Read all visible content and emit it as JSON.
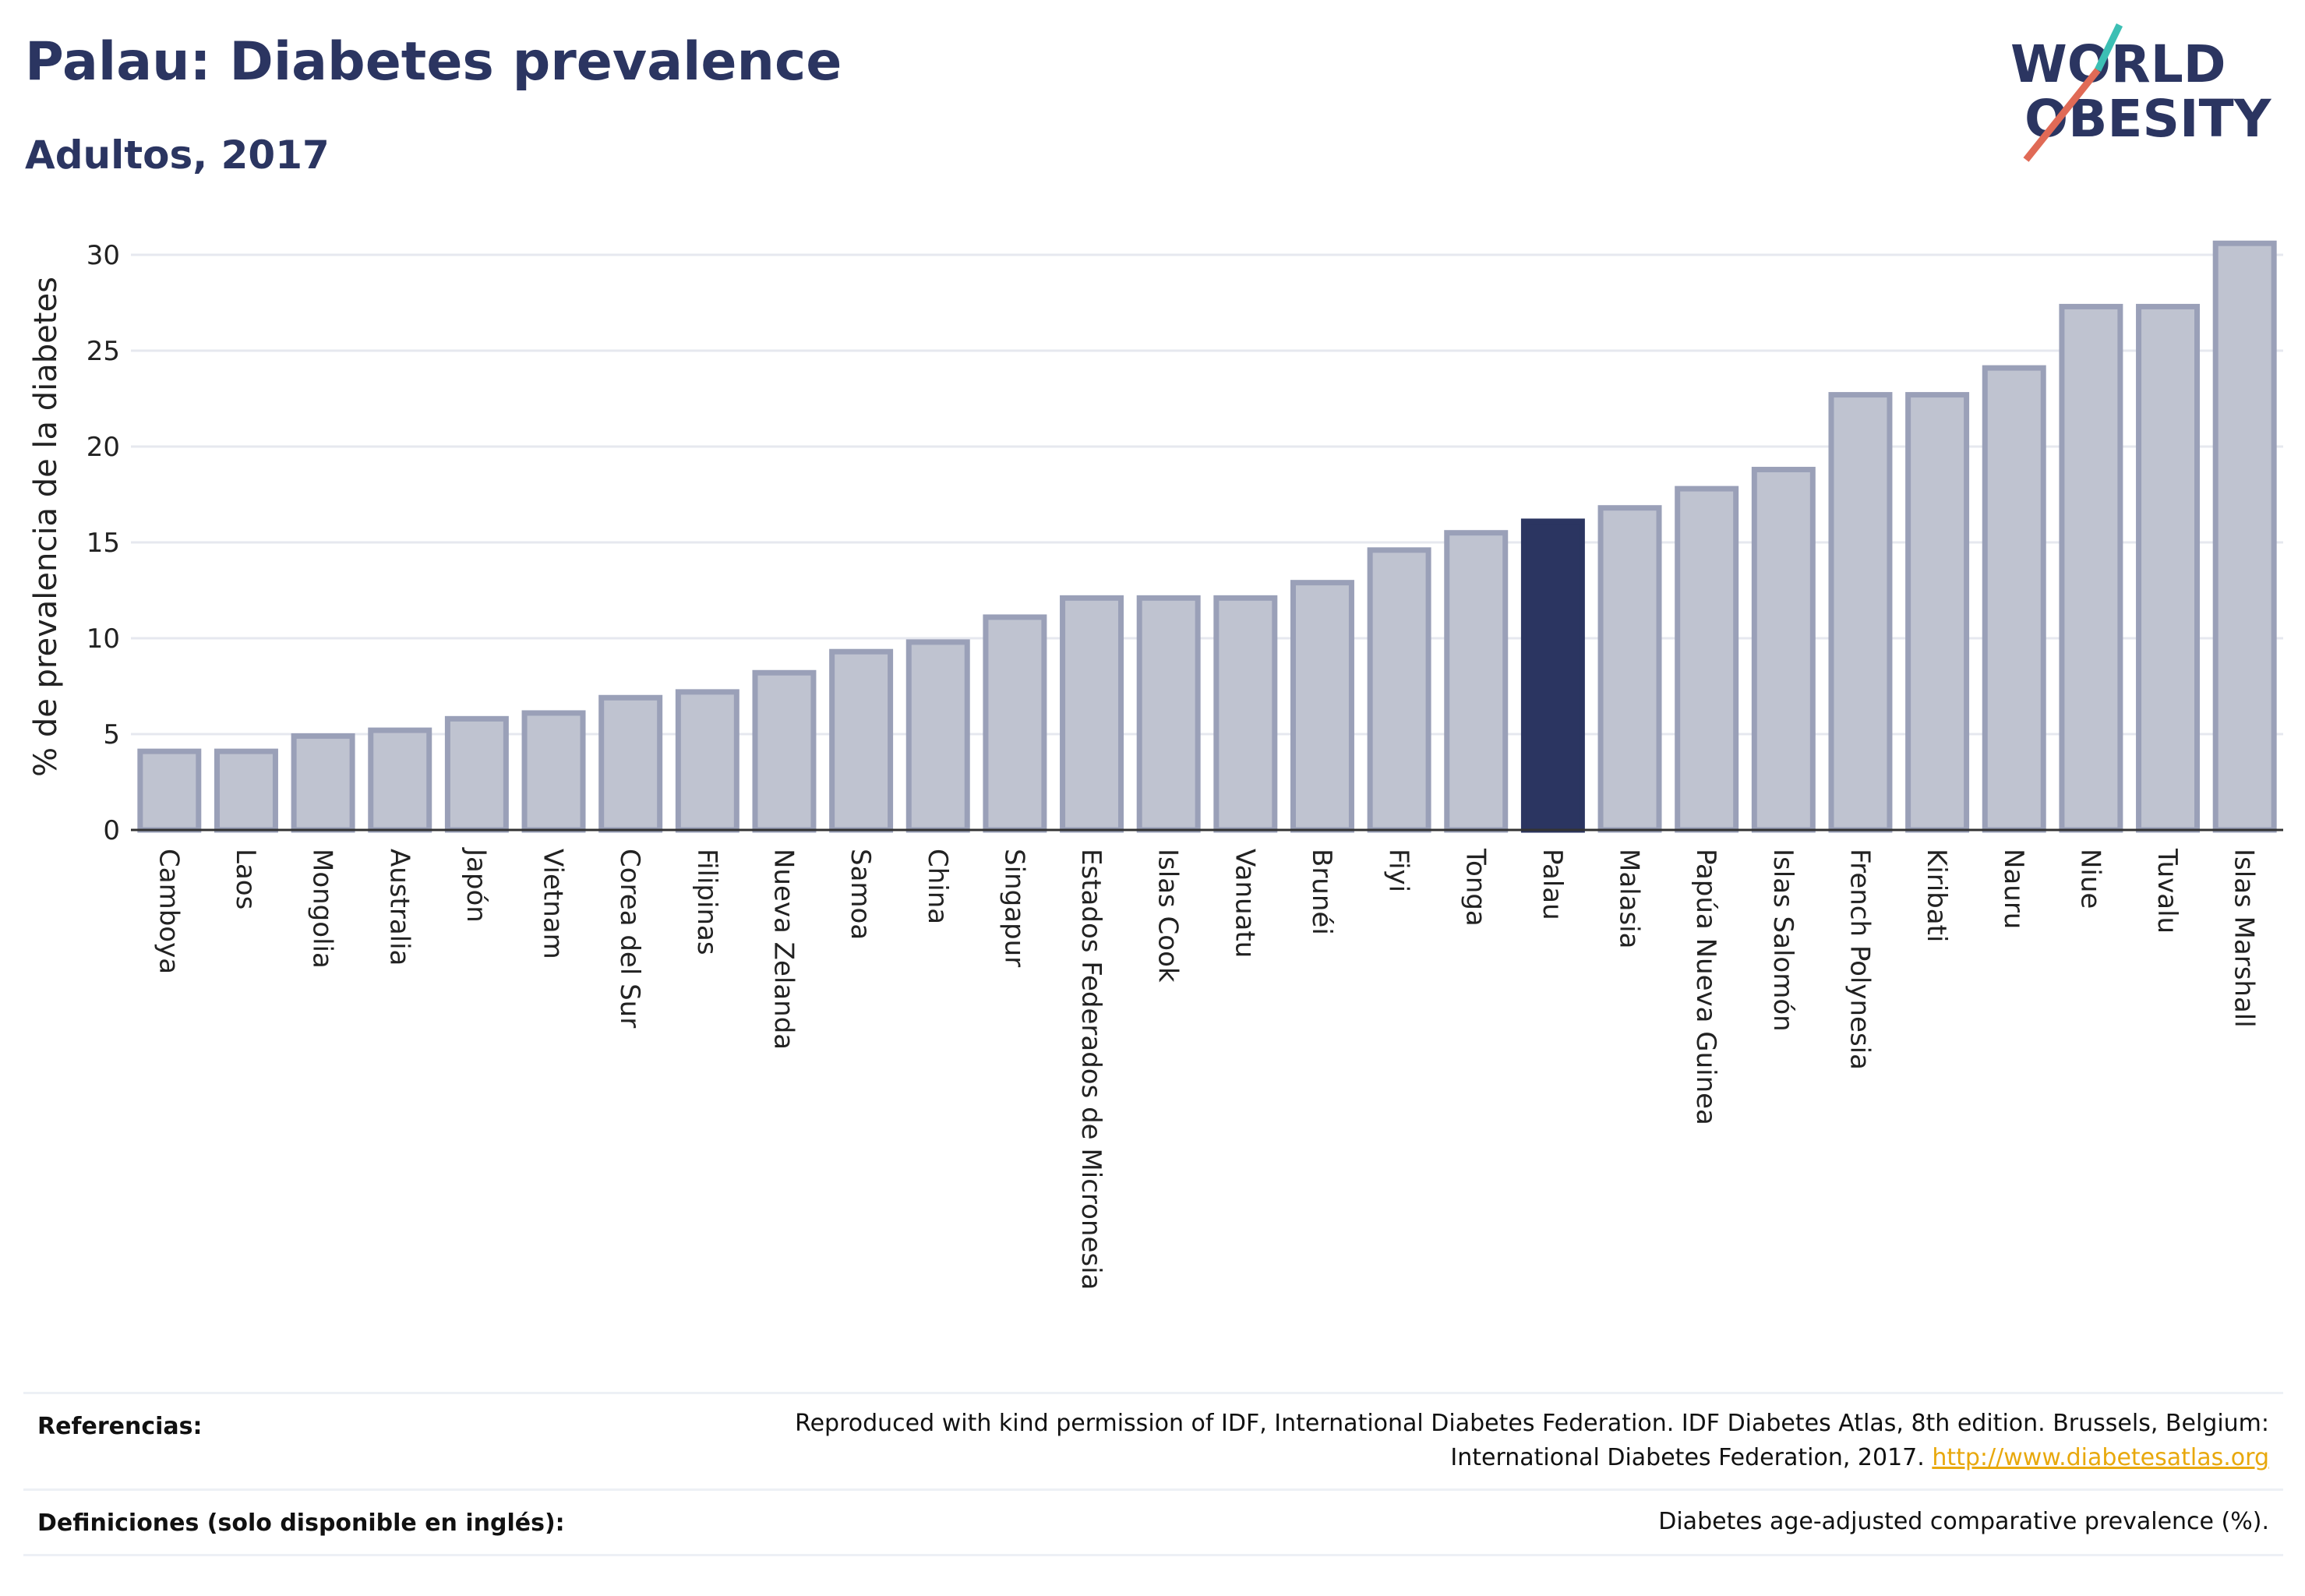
{
  "header": {
    "title": "Palau: Diabetes prevalence",
    "subtitle": "Adultos, 2017"
  },
  "logo": {
    "line1": "WORLD",
    "line2": "OBESITY",
    "text_color": "#2b3561",
    "slash_colors": [
      "#e06a56",
      "#3cbfb4"
    ]
  },
  "chart_data": {
    "type": "bar",
    "title": "Palau: Diabetes prevalence",
    "subtitle": "Adultos, 2017",
    "xlabel": "",
    "ylabel": "% de prevalencia de la diabetes",
    "ylim": [
      0,
      31
    ],
    "yticks": [
      0,
      5,
      10,
      15,
      20,
      25,
      30
    ],
    "grid": true,
    "highlight": "Palau",
    "colors": {
      "bar": "#bfc3d0",
      "bar_border": "#9aa0b8",
      "highlight": "#2b3561",
      "grid": "#e6e8ef"
    },
    "categories": [
      "Camboya",
      "Laos",
      "Mongolia",
      "Australia",
      "Japón",
      "Vietnam",
      "Corea del Sur",
      "Filipinas",
      "Nueva Zelanda",
      "Samoa",
      "China",
      "Singapur",
      "Estados Federados de Micronesia",
      "Islas Cook",
      "Vanuatu",
      "Brunéi",
      "Fiyi",
      "Tonga",
      "Palau",
      "Malasia",
      "Papúa Nueva Guinea",
      "Islas Salomón",
      "French Polynesia",
      "Kiribati",
      "Nauru",
      "Niue",
      "Tuvalu",
      "Islas Marshall"
    ],
    "values": [
      4.1,
      4.1,
      4.9,
      5.2,
      5.8,
      6.1,
      6.9,
      7.2,
      8.2,
      9.3,
      9.8,
      11.1,
      12.1,
      12.1,
      12.1,
      12.9,
      14.6,
      15.5,
      16.1,
      16.8,
      17.8,
      18.8,
      22.7,
      22.7,
      24.1,
      27.3,
      27.3,
      30.6
    ]
  },
  "footer": {
    "references_label": "Referencias:",
    "references_text_1": "Reproduced with kind permission of IDF, International Diabetes Federation. IDF Diabetes Atlas, 8th edition. Brussels, Belgium:",
    "references_text_2": "International Diabetes Federation, 2017.",
    "references_link": "http://www.diabetesatlas.org",
    "definitions_label": "Definiciones (solo disponible en inglés):",
    "definitions_text": "Diabetes age-adjusted comparative prevalence (%)."
  }
}
